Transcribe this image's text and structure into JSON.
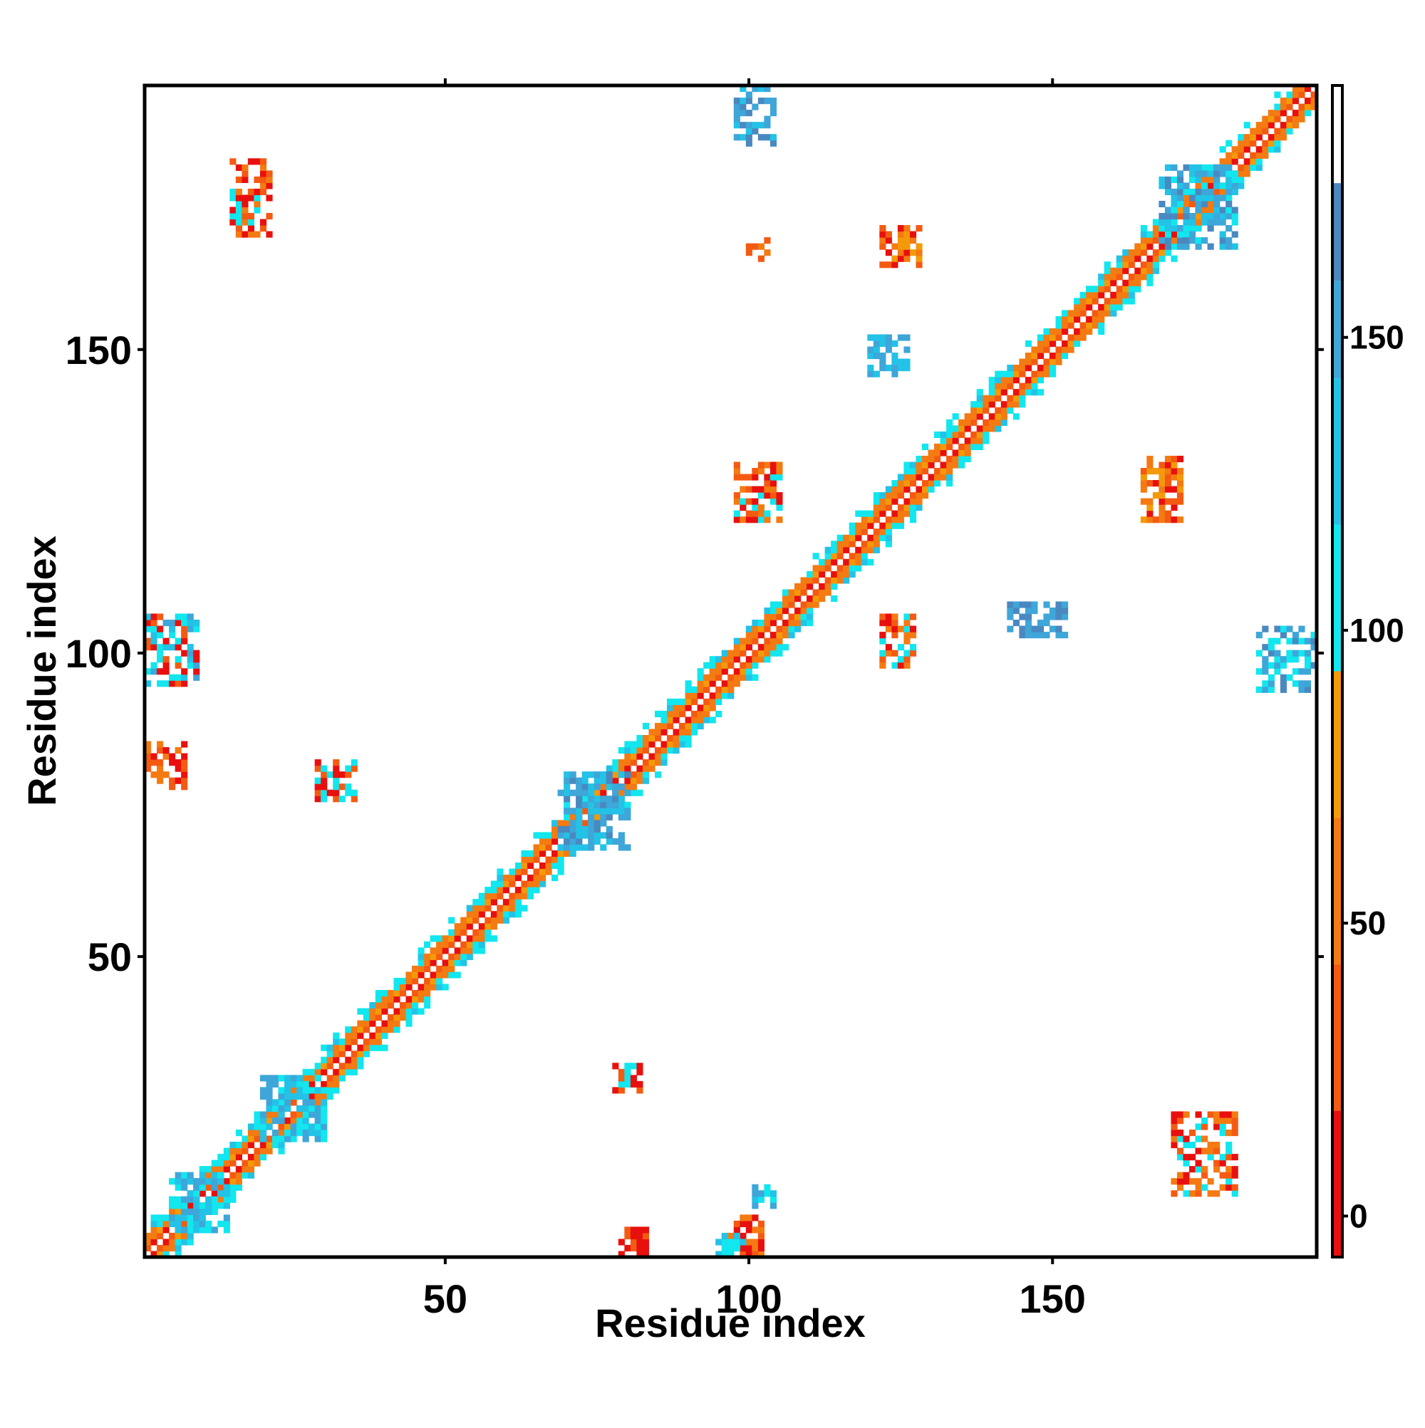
{
  "chart_data": {
    "type": "heatmap",
    "title": "",
    "xlabel": "Residue index",
    "ylabel": "Residue index",
    "xlim": [
      1,
      193
    ],
    "ylim": [
      1,
      193
    ],
    "x_ticks": [
      "50",
      "100",
      "150"
    ],
    "y_ticks": [
      "50",
      "100",
      "150"
    ],
    "x_tick_values": [
      50,
      100,
      150
    ],
    "y_tick_values": [
      50,
      100,
      150
    ],
    "colorbar": {
      "ticks": [
        "0",
        "50",
        "100",
        "150"
      ],
      "tick_values": [
        0,
        50,
        100,
        150
      ],
      "range": [
        -7,
        193
      ],
      "bins": [
        {
          "from": -7,
          "to": 43,
          "colors": [
            "#e8100e",
            "#f45a12"
          ]
        },
        {
          "from": 43,
          "to": 93,
          "colors": [
            "#f47a12",
            "#f49a0a"
          ]
        },
        {
          "from": 93,
          "to": 143,
          "colors": [
            "#12e6ee",
            "#23c2e6"
          ]
        },
        {
          "from": 143,
          "to": 193,
          "colors": [
            "#3ea6d8",
            "#4a88c0",
            "#ffffff"
          ]
        }
      ]
    },
    "colors": {
      "red": "#e8100e",
      "orange_red": "#f45a12",
      "orange": "#f47a12",
      "amber": "#f49a0a",
      "cyan": "#12e6ee",
      "sky": "#23c2e6",
      "blue": "#3ea6d8",
      "steel": "#4a88c0"
    },
    "diagonal": {
      "from": 1,
      "to": 193,
      "colors": [
        "#e8100e",
        "#f47a12",
        "#f49a0a",
        "#12e6ee"
      ]
    },
    "clusters": [
      {
        "i": [
          97,
          102
        ],
        "j": [
          1,
          7
        ],
        "colors": [
          "#e8100e",
          "#f45a12",
          "#f47a12"
        ]
      },
      {
        "i": [
          95,
          99
        ],
        "j": [
          1,
          4
        ],
        "colors": [
          "#12e6ee",
          "#23c2e6"
        ]
      },
      {
        "i": [
          101,
          104
        ],
        "j": [
          9,
          12
        ],
        "colors": [
          "#12e6ee",
          "#23c2e6",
          "#3ea6d8"
        ]
      },
      {
        "i": [
          79,
          83
        ],
        "j": [
          1,
          5
        ],
        "colors": [
          "#e8100e",
          "#f45a12"
        ]
      },
      {
        "i": [
          78,
          82
        ],
        "j": [
          28,
          32
        ],
        "colors": [
          "#e8100e",
          "#f45a12",
          "#12e6ee"
        ]
      },
      {
        "i": [
          170,
          180
        ],
        "j": [
          11,
          24
        ],
        "colors": [
          "#f47a12",
          "#f45a12",
          "#e8100e",
          "#12e6ee"
        ]
      },
      {
        "i": [
          1,
          7
        ],
        "j": [
          78,
          85
        ],
        "colors": [
          "#e8100e",
          "#f45a12",
          "#f47a12"
        ]
      },
      {
        "i": [
          1,
          9
        ],
        "j": [
          95,
          106
        ],
        "colors": [
          "#e8100e",
          "#f45a12",
          "#12e6ee",
          "#23c2e6",
          "#3ea6d8"
        ]
      },
      {
        "i": [
          29,
          35
        ],
        "j": [
          76,
          82
        ],
        "colors": [
          "#e8100e",
          "#f45a12",
          "#12e6ee"
        ]
      },
      {
        "i": [
          122,
          127
        ],
        "j": [
          98,
          106
        ],
        "colors": [
          "#e8100e",
          "#f45a12",
          "#f47a12",
          "#12e6ee"
        ]
      },
      {
        "i": [
          98,
          105
        ],
        "j": [
          122,
          131
        ],
        "colors": [
          "#e8100e",
          "#f45a12",
          "#f47a12",
          "#12e6ee"
        ]
      },
      {
        "i": [
          165,
          171
        ],
        "j": [
          122,
          132
        ],
        "colors": [
          "#e8100e",
          "#f45a12",
          "#f47a12",
          "#f49a0a"
        ]
      },
      {
        "i": [
          122,
          128
        ],
        "j": [
          164,
          170
        ],
        "colors": [
          "#e8100e",
          "#f45a12",
          "#f47a12",
          "#f49a0a"
        ]
      },
      {
        "i": [
          100,
          103
        ],
        "j": [
          165,
          168
        ],
        "colors": [
          "#f47a12",
          "#f45a12"
        ]
      },
      {
        "i": [
          15,
          21
        ],
        "j": [
          169,
          181
        ],
        "colors": [
          "#f47a12",
          "#f45a12",
          "#e8100e",
          "#12e6ee"
        ]
      },
      {
        "i": [
          69,
          80
        ],
        "j": [
          68,
          80
        ],
        "colors": [
          "#3ea6d8",
          "#23c2e6",
          "#4a88c0"
        ]
      },
      {
        "i": [
          168,
          180
        ],
        "j": [
          167,
          180
        ],
        "colors": [
          "#3ea6d8",
          "#23c2e6",
          "#4a88c0",
          "#12e6ee"
        ]
      },
      {
        "i": [
          5,
          14
        ],
        "j": [
          5,
          14
        ],
        "colors": [
          "#23c2e6",
          "#3ea6d8",
          "#12e6ee"
        ]
      },
      {
        "i": [
          20,
          30
        ],
        "j": [
          20,
          30
        ],
        "colors": [
          "#23c2e6",
          "#12e6ee",
          "#3ea6d8"
        ]
      },
      {
        "i": [
          184,
          193
        ],
        "j": [
          94,
          104
        ],
        "colors": [
          "#3ea6d8",
          "#4a88c0",
          "#12e6ee"
        ]
      },
      {
        "i": [
          143,
          152
        ],
        "j": [
          103,
          108
        ],
        "colors": [
          "#3ea6d8",
          "#4a88c0"
        ]
      },
      {
        "i": [
          98,
          104
        ],
        "j": [
          184,
          193
        ],
        "colors": [
          "#3ea6d8",
          "#4a88c0",
          "#23c2e6"
        ]
      },
      {
        "i": [
          120,
          126
        ],
        "j": [
          146,
          152
        ],
        "colors": [
          "#23c2e6",
          "#3ea6d8"
        ]
      }
    ]
  }
}
